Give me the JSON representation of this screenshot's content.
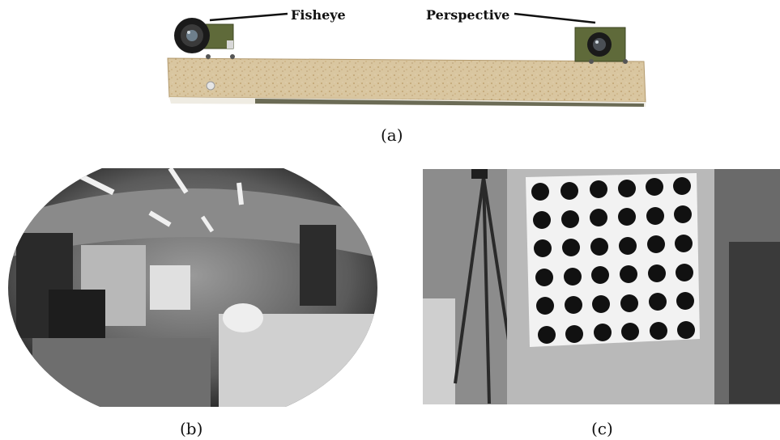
{
  "panel_a": {
    "callouts": {
      "fisheye": "Fisheye",
      "perspective": "Perspective"
    },
    "caption": "(a)"
  },
  "panel_b": {
    "caption": "(b)"
  },
  "panel_c": {
    "caption": "(c)"
  },
  "colors": {
    "board": "#d6c29b",
    "board_edge": "#b39a6e",
    "pcb": "#5f6a3a",
    "target_dot": "#111111",
    "target_paper": "#f2f2f2"
  }
}
